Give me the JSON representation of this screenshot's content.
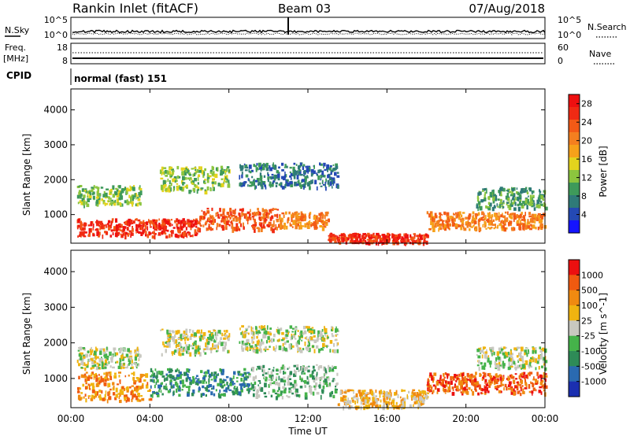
{
  "header": {
    "title": "Rankin Inlet (fitACF)",
    "beam": "Beam 03",
    "date": "07/Aug/2018"
  },
  "noise_panel": {
    "left_label": "N.Sky",
    "left_ticks": [
      "10^5",
      "10^0"
    ],
    "right_label": "N.Search",
    "right_ticks": [
      "10^5",
      "10^0"
    ]
  },
  "freq_panel": {
    "left_label_1": "Freq.",
    "left_label_2": "[MHz]",
    "left_ticks": [
      "18",
      "8"
    ],
    "right_label": "Nave",
    "right_ticks": [
      "60",
      "0"
    ]
  },
  "cpid_panel": {
    "label": "CPID",
    "text": "normal (fast) 151"
  },
  "chart_data": [
    {
      "type": "heatmap",
      "title": "",
      "xlabel": "Time UT",
      "ylabel": "Slant Range [km]",
      "x_range_hours": [
        0,
        24
      ],
      "ylim": [
        180,
        4600
      ],
      "xticks": [
        "00:00",
        "04:00",
        "08:00",
        "12:00",
        "16:00",
        "20:00",
        "00:00"
      ],
      "yticks": [
        1000,
        2000,
        3000,
        4000
      ],
      "colorbar": {
        "label": "Power [dB]",
        "ticks": [
          "4",
          "8",
          "12",
          "16",
          "20",
          "24",
          "28"
        ],
        "colors": [
          "#1414ff",
          "#2449b4",
          "#2f7a78",
          "#3e9a5a",
          "#8cc53e",
          "#e3d31d",
          "#f6a11a",
          "#f47f1f",
          "#f35a16",
          "#f02a13",
          "#ee1010"
        ]
      },
      "bands": [
        {
          "t0": 0.3,
          "t1": 6.5,
          "r0": 400,
          "r1": 900,
          "level": 9
        },
        {
          "t0": 6.5,
          "t1": 10.5,
          "r0": 600,
          "r1": 1200,
          "level": 8
        },
        {
          "t0": 10.5,
          "t1": 13.0,
          "r0": 650,
          "r1": 1100,
          "level": 7
        },
        {
          "t0": 13.0,
          "t1": 18.0,
          "r0": 220,
          "r1": 480,
          "level": 9
        },
        {
          "t0": 18.0,
          "t1": 24.0,
          "r0": 600,
          "r1": 1100,
          "level": 7
        },
        {
          "t0": 0.3,
          "t1": 3.5,
          "r0": 1300,
          "r1": 1850,
          "level": 4
        },
        {
          "t0": 4.5,
          "t1": 8.0,
          "r0": 1700,
          "r1": 2400,
          "level": 4
        },
        {
          "t0": 8.5,
          "t1": 13.5,
          "r0": 1800,
          "r1": 2500,
          "level": 2
        },
        {
          "t0": 20.5,
          "t1": 24.0,
          "r0": 1200,
          "r1": 1800,
          "level": 3
        }
      ]
    },
    {
      "type": "heatmap",
      "title": "",
      "xlabel": "Time UT",
      "ylabel": "Slant Range [km]",
      "x_range_hours": [
        0,
        24
      ],
      "ylim": [
        180,
        4600
      ],
      "xticks": [
        "00:00",
        "04:00",
        "08:00",
        "12:00",
        "16:00",
        "20:00",
        "00:00"
      ],
      "yticks": [
        1000,
        2000,
        3000,
        4000
      ],
      "colorbar": {
        "label": "Velocity [m s^-1]",
        "ticks": [
          "1000",
          "500",
          "100",
          "25",
          "-25",
          "-100",
          "-500",
          "-1000"
        ],
        "colors": [
          "#1b2fb0",
          "#2a6ab0",
          "#2e8b57",
          "#45b34a",
          "#c8c8c0",
          "#f0b410",
          "#f08a10",
          "#f05a10",
          "#ec1010"
        ]
      },
      "bands": [
        {
          "t0": 0.3,
          "t1": 4.0,
          "r0": 400,
          "r1": 1200,
          "level": 6
        },
        {
          "t0": 4.0,
          "t1": 9.0,
          "r0": 550,
          "r1": 1300,
          "level": 2
        },
        {
          "t0": 9.0,
          "t1": 13.5,
          "r0": 500,
          "r1": 1400,
          "level": 3
        },
        {
          "t0": 13.5,
          "t1": 18.0,
          "r0": 220,
          "r1": 700,
          "level": 5
        },
        {
          "t0": 18.0,
          "t1": 24.0,
          "r0": 600,
          "r1": 1200,
          "level": 7
        },
        {
          "t0": 0.3,
          "t1": 3.5,
          "r0": 1300,
          "r1": 1900,
          "level": 4
        },
        {
          "t0": 4.5,
          "t1": 8.0,
          "r0": 1700,
          "r1": 2400,
          "level": 4
        },
        {
          "t0": 8.5,
          "t1": 13.5,
          "r0": 1800,
          "r1": 2500,
          "level": 4
        },
        {
          "t0": 20.5,
          "t1": 24.0,
          "r0": 1300,
          "r1": 1900,
          "level": 4
        }
      ]
    }
  ],
  "axis": {
    "xlabel": "Time UT",
    "ylabel": "Slant Range [km]"
  }
}
